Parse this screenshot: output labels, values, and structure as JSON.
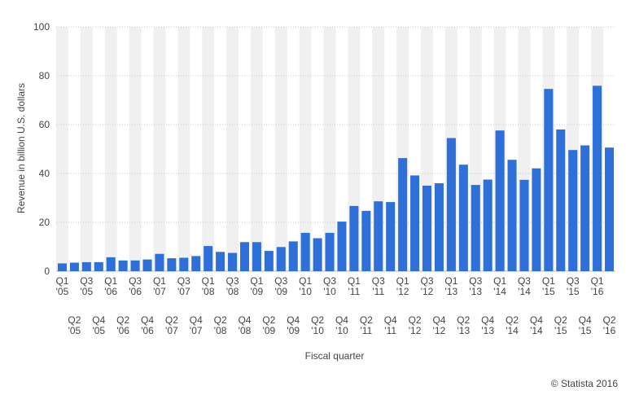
{
  "chart_data": {
    "type": "bar",
    "title": "",
    "xlabel": "Fiscal quarter",
    "ylabel": "Revenue in billion U.S. dollars",
    "ylim": [
      0,
      100
    ],
    "yticks": [
      0,
      20,
      40,
      60,
      80,
      100
    ],
    "grid": true,
    "bar_color": "#2f6fd8",
    "band_color": "#f0f0f0",
    "categories": [
      [
        "Q1",
        "'05"
      ],
      [
        "Q2",
        "'05"
      ],
      [
        "Q3",
        "'05"
      ],
      [
        "Q4",
        "'05"
      ],
      [
        "Q1",
        "'06"
      ],
      [
        "Q2",
        "'06"
      ],
      [
        "Q3",
        "'06"
      ],
      [
        "Q4",
        "'06"
      ],
      [
        "Q1",
        "'07"
      ],
      [
        "Q2",
        "'07"
      ],
      [
        "Q3",
        "'07"
      ],
      [
        "Q4",
        "'07"
      ],
      [
        "Q1",
        "'08"
      ],
      [
        "Q2",
        "'08"
      ],
      [
        "Q3",
        "'08"
      ],
      [
        "Q4",
        "'08"
      ],
      [
        "Q1",
        "'09"
      ],
      [
        "Q2",
        "'09"
      ],
      [
        "Q3",
        "'09"
      ],
      [
        "Q4",
        "'09"
      ],
      [
        "Q1",
        "'10"
      ],
      [
        "Q2",
        "'10"
      ],
      [
        "Q3",
        "'10"
      ],
      [
        "Q4",
        "'10"
      ],
      [
        "Q1",
        "'11"
      ],
      [
        "Q2",
        "'11"
      ],
      [
        "Q3",
        "'11"
      ],
      [
        "Q4",
        "'11"
      ],
      [
        "Q1",
        "'12"
      ],
      [
        "Q2",
        "'12"
      ],
      [
        "Q3",
        "'12"
      ],
      [
        "Q4",
        "'12"
      ],
      [
        "Q1",
        "'13"
      ],
      [
        "Q2",
        "'13"
      ],
      [
        "Q3",
        "'13"
      ],
      [
        "Q4",
        "'13"
      ],
      [
        "Q1",
        "'14"
      ],
      [
        "Q2",
        "'14"
      ],
      [
        "Q3",
        "'14"
      ],
      [
        "Q4",
        "'14"
      ],
      [
        "Q1",
        "'15"
      ],
      [
        "Q2",
        "'15"
      ],
      [
        "Q3",
        "'15"
      ],
      [
        "Q4",
        "'15"
      ],
      [
        "Q1",
        "'16"
      ],
      [
        "Q2",
        "'16"
      ]
    ],
    "values": [
      3.2,
      3.5,
      3.7,
      3.7,
      5.7,
      4.4,
      4.4,
      4.8,
      7.1,
      5.3,
      5.5,
      6.2,
      10.3,
      7.9,
      7.5,
      11.9,
      11.9,
      8.3,
      9.9,
      12.2,
      15.7,
      13.5,
      15.7,
      20.3,
      26.7,
      24.7,
      28.6,
      28.3,
      46.3,
      39.2,
      35.0,
      36.0,
      54.5,
      43.6,
      35.3,
      37.5,
      57.6,
      45.6,
      37.4,
      42.1,
      74.6,
      58.0,
      49.6,
      51.5,
      75.9,
      50.6
    ]
  },
  "credit": "© Statista 2016"
}
